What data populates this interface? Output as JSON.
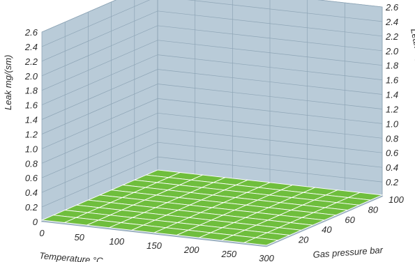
{
  "chart_data": {
    "type": "surface",
    "xlabel": "Temperature °C",
    "ylabel": "Gas pressure bar",
    "zlabel_left": "Leak mg/(sm)",
    "zlabel_right": "Leak mg/(sm)",
    "x_ticks": [
      "0",
      "50",
      "100",
      "150",
      "200",
      "250",
      "300"
    ],
    "y_ticks": [
      "20",
      "40",
      "60",
      "80",
      "100"
    ],
    "z_ticks_left": [
      "0",
      "0.2",
      "0.4",
      "0.6",
      "0.8",
      "1.0",
      "1.2",
      "1.4",
      "1.6",
      "1.8",
      "2.0",
      "2.2",
      "2.4",
      "2.6"
    ],
    "z_ticks_right": [
      "0.2",
      "0.4",
      "0.6",
      "0.8",
      "1.0",
      "1.2",
      "1.4",
      "1.6",
      "1.8",
      "2.0",
      "2.2",
      "2.4",
      "2.6"
    ],
    "xlim": [
      0,
      300
    ],
    "ylim": [
      0,
      100
    ],
    "zlim": [
      0,
      2.6
    ],
    "x": [
      0,
      30,
      60,
      90,
      120,
      150,
      180,
      210,
      240,
      270,
      300
    ],
    "y": [
      0,
      10,
      20,
      30,
      40,
      50,
      60,
      70,
      80,
      90,
      100
    ],
    "z": [
      [
        0.02,
        0.02,
        0.02,
        0.02,
        0.02,
        0.02,
        0.02,
        0.02,
        0.02,
        0.02,
        0.02
      ],
      [
        0.02,
        0.02,
        0.02,
        0.02,
        0.02,
        0.02,
        0.02,
        0.02,
        0.02,
        0.02,
        0.02
      ],
      [
        0.02,
        0.02,
        0.02,
        0.02,
        0.02,
        0.02,
        0.02,
        0.02,
        0.02,
        0.02,
        0.02
      ],
      [
        0.02,
        0.02,
        0.02,
        0.02,
        0.02,
        0.02,
        0.02,
        0.02,
        0.02,
        0.02,
        0.02
      ],
      [
        0.02,
        0.02,
        0.02,
        0.02,
        0.02,
        0.02,
        0.02,
        0.02,
        0.02,
        0.02,
        0.02
      ],
      [
        0.02,
        0.02,
        0.02,
        0.02,
        0.02,
        0.02,
        0.02,
        0.02,
        0.02,
        0.02,
        0.02
      ],
      [
        0.02,
        0.02,
        0.02,
        0.02,
        0.02,
        0.02,
        0.02,
        0.02,
        0.02,
        0.02,
        0.02
      ],
      [
        0.02,
        0.02,
        0.02,
        0.02,
        0.02,
        0.02,
        0.02,
        0.02,
        0.02,
        0.02,
        0.02
      ],
      [
        0.02,
        0.02,
        0.02,
        0.02,
        0.02,
        0.02,
        0.02,
        0.02,
        0.02,
        0.02,
        0.02
      ],
      [
        0.02,
        0.02,
        0.02,
        0.02,
        0.02,
        0.02,
        0.02,
        0.02,
        0.02,
        0.02,
        0.02
      ],
      [
        0.02,
        0.02,
        0.02,
        0.02,
        0.02,
        0.02,
        0.02,
        0.02,
        0.02,
        0.02,
        0.02
      ]
    ],
    "grid": true,
    "colors": {
      "wall": "#b9cbd8",
      "wall_dark": "#a7bccb",
      "gridline": "#8ea5b6",
      "surface": "#6fbe3d",
      "surface_line": "#ffffff",
      "axis_text": "#2b2b2b"
    }
  }
}
